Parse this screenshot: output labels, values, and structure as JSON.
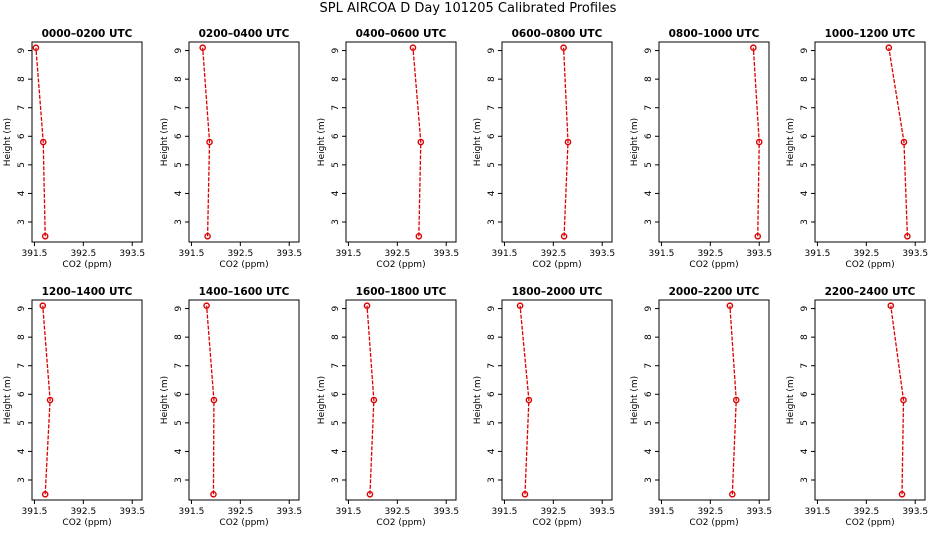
{
  "title": "SPL AIRCOA D  Day 101205  Calibrated Profiles",
  "colors": {
    "series": "#dd0000",
    "frame": "#000000",
    "background": "#ffffff"
  },
  "chart_data": [
    {
      "type": "line",
      "title": "0000–0200 UTC",
      "xlabel": "CO2 (ppm)",
      "ylabel": "Height (m)",
      "xlim": [
        391.45,
        393.7
      ],
      "ylim": [
        2.3,
        9.3
      ],
      "xticks": [
        "391.5",
        "392.5",
        "393.5"
      ],
      "yticks": [
        "3",
        "4",
        "5",
        "6",
        "7",
        "8",
        "9"
      ],
      "grid": false,
      "series": [
        {
          "x": [
            391.72,
            391.68,
            391.53
          ],
          "y": [
            2.5,
            5.8,
            9.1
          ]
        }
      ]
    },
    {
      "type": "line",
      "title": "0200–0400 UTC",
      "xlabel": "CO2 (ppm)",
      "ylabel": "Height (m)",
      "xlim": [
        391.45,
        393.7
      ],
      "ylim": [
        2.3,
        9.3
      ],
      "xticks": [
        "391.5",
        "392.5",
        "393.5"
      ],
      "yticks": [
        "3",
        "4",
        "5",
        "6",
        "7",
        "8",
        "9"
      ],
      "grid": false,
      "series": [
        {
          "x": [
            391.83,
            391.87,
            391.73
          ],
          "y": [
            2.5,
            5.8,
            9.1
          ]
        }
      ]
    },
    {
      "type": "line",
      "title": "0400–0600 UTC",
      "xlabel": "CO2 (ppm)",
      "ylabel": "Height (m)",
      "xlim": [
        391.45,
        393.7
      ],
      "ylim": [
        2.3,
        9.3
      ],
      "xticks": [
        "391.5",
        "392.5",
        "393.5"
      ],
      "yticks": [
        "3",
        "4",
        "5",
        "6",
        "7",
        "8",
        "9"
      ],
      "grid": false,
      "series": [
        {
          "x": [
            392.94,
            392.98,
            392.82
          ],
          "y": [
            2.5,
            5.8,
            9.1
          ]
        }
      ]
    },
    {
      "type": "line",
      "title": "0600–0800 UTC",
      "xlabel": "CO2 (ppm)",
      "ylabel": "Height (m)",
      "xlim": [
        391.45,
        393.7
      ],
      "ylim": [
        2.3,
        9.3
      ],
      "xticks": [
        "391.5",
        "392.5",
        "393.5"
      ],
      "yticks": [
        "3",
        "4",
        "5",
        "6",
        "7",
        "8",
        "9"
      ],
      "grid": false,
      "series": [
        {
          "x": [
            392.72,
            392.8,
            392.71
          ],
          "y": [
            2.5,
            5.8,
            9.1
          ]
        }
      ]
    },
    {
      "type": "line",
      "title": "0800–1000 UTC",
      "xlabel": "CO2 (ppm)",
      "ylabel": "Height (m)",
      "xlim": [
        391.45,
        393.7
      ],
      "ylim": [
        2.3,
        9.3
      ],
      "xticks": [
        "391.5",
        "392.5",
        "393.5"
      ],
      "yticks": [
        "3",
        "4",
        "5",
        "6",
        "7",
        "8",
        "9"
      ],
      "grid": false,
      "series": [
        {
          "x": [
            393.47,
            393.5,
            393.38
          ],
          "y": [
            2.5,
            5.8,
            9.1
          ]
        }
      ]
    },
    {
      "type": "line",
      "title": "1000–1200 UTC",
      "xlabel": "CO2 (ppm)",
      "ylabel": "Height (m)",
      "xlim": [
        391.45,
        393.7
      ],
      "ylim": [
        2.3,
        9.3
      ],
      "xticks": [
        "391.5",
        "392.5",
        "393.5"
      ],
      "yticks": [
        "3",
        "4",
        "5",
        "6",
        "7",
        "8",
        "9"
      ],
      "grid": false,
      "series": [
        {
          "x": [
            393.34,
            393.27,
            392.96
          ],
          "y": [
            2.5,
            5.8,
            9.1
          ]
        }
      ]
    },
    {
      "type": "line",
      "title": "1200–1400 UTC",
      "xlabel": "CO2 (ppm)",
      "ylabel": "Height (m)",
      "xlim": [
        391.45,
        393.7
      ],
      "ylim": [
        2.3,
        9.3
      ],
      "xticks": [
        "391.5",
        "392.5",
        "393.5"
      ],
      "yticks": [
        "3",
        "4",
        "5",
        "6",
        "7",
        "8",
        "9"
      ],
      "grid": false,
      "series": [
        {
          "x": [
            391.72,
            391.82,
            391.67
          ],
          "y": [
            2.5,
            5.8,
            9.1
          ]
        }
      ]
    },
    {
      "type": "line",
      "title": "1400–1600 UTC",
      "xlabel": "CO2 (ppm)",
      "ylabel": "Height (m)",
      "xlim": [
        391.45,
        393.7
      ],
      "ylim": [
        2.3,
        9.3
      ],
      "xticks": [
        "391.5",
        "392.5",
        "393.5"
      ],
      "yticks": [
        "3",
        "4",
        "5",
        "6",
        "7",
        "8",
        "9"
      ],
      "grid": false,
      "series": [
        {
          "x": [
            391.95,
            391.96,
            391.81
          ],
          "y": [
            2.5,
            5.8,
            9.1
          ]
        }
      ]
    },
    {
      "type": "line",
      "title": "1600–1800 UTC",
      "xlabel": "CO2 (ppm)",
      "ylabel": "Height (m)",
      "xlim": [
        391.45,
        393.7
      ],
      "ylim": [
        2.3,
        9.3
      ],
      "xticks": [
        "391.5",
        "392.5",
        "393.5"
      ],
      "yticks": [
        "3",
        "4",
        "5",
        "6",
        "7",
        "8",
        "9"
      ],
      "grid": false,
      "series": [
        {
          "x": [
            391.94,
            392.02,
            391.88
          ],
          "y": [
            2.5,
            5.8,
            9.1
          ]
        }
      ]
    },
    {
      "type": "line",
      "title": "1800–2000 UTC",
      "xlabel": "CO2 (ppm)",
      "ylabel": "Height (m)",
      "xlim": [
        391.45,
        393.7
      ],
      "ylim": [
        2.3,
        9.3
      ],
      "xticks": [
        "391.5",
        "392.5",
        "393.5"
      ],
      "yticks": [
        "3",
        "4",
        "5",
        "6",
        "7",
        "8",
        "9"
      ],
      "grid": false,
      "series": [
        {
          "x": [
            391.92,
            392.0,
            391.82
          ],
          "y": [
            2.5,
            5.8,
            9.1
          ]
        }
      ]
    },
    {
      "type": "line",
      "title": "2000–2200 UTC",
      "xlabel": "CO2 (ppm)",
      "ylabel": "Height (m)",
      "xlim": [
        391.45,
        393.7
      ],
      "ylim": [
        2.3,
        9.3
      ],
      "xticks": [
        "391.5",
        "392.5",
        "393.5"
      ],
      "yticks": [
        "3",
        "4",
        "5",
        "6",
        "7",
        "8",
        "9"
      ],
      "grid": false,
      "series": [
        {
          "x": [
            392.95,
            393.03,
            392.9
          ],
          "y": [
            2.5,
            5.8,
            9.1
          ]
        }
      ]
    },
    {
      "type": "line",
      "title": "2200–2400 UTC",
      "xlabel": "CO2 (ppm)",
      "ylabel": "Height (m)",
      "xlim": [
        391.45,
        393.7
      ],
      "ylim": [
        2.3,
        9.3
      ],
      "xticks": [
        "391.5",
        "392.5",
        "393.5"
      ],
      "yticks": [
        "3",
        "4",
        "5",
        "6",
        "7",
        "8",
        "9"
      ],
      "grid": false,
      "series": [
        {
          "x": [
            393.23,
            393.26,
            393.0
          ],
          "y": [
            2.5,
            5.8,
            9.1
          ]
        }
      ]
    }
  ]
}
